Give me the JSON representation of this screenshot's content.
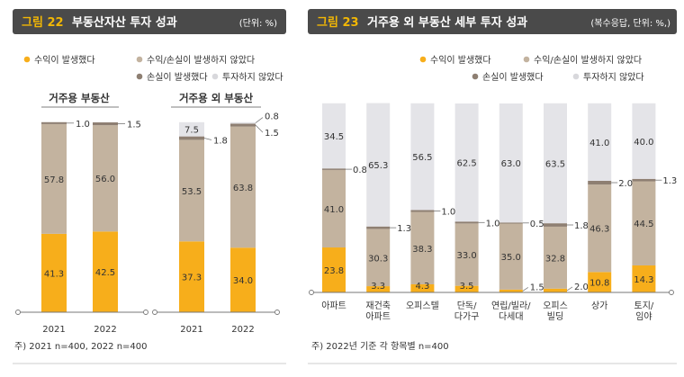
{
  "colors": {
    "header_bg": "#4a4a4a",
    "header_accent": "#f2b705",
    "header_text": "#ffffff",
    "profit": "#f7ae1b",
    "mixed": "#c3b39f",
    "loss": "#8e7f72",
    "no_invest": "#e4e4e8",
    "axis": "#777777"
  },
  "legend_items": [
    {
      "key": "profit",
      "label": "수익이 발생했다"
    },
    {
      "key": "mixed",
      "label": "수익/손실이 발생하지 않았다"
    },
    {
      "key": "loss",
      "label": "손실이 발생했다"
    },
    {
      "key": "no_invest",
      "label": "투자하지 않았다"
    }
  ],
  "chart_data": [
    {
      "type": "bar",
      "stacked": true,
      "figure_label": "그림 22",
      "title": "부동산자산 투자 성과",
      "unit": "(단위: %)",
      "groups": [
        {
          "title": "거주용 부동산",
          "categories": [
            "2021",
            "2022"
          ]
        },
        {
          "title": "거주용 외 부동산",
          "categories": [
            "2021",
            "2022"
          ]
        }
      ],
      "series": [
        {
          "name": "수익이 발생했다",
          "key": "profit",
          "values": [
            41.3,
            42.5,
            37.3,
            34.0
          ],
          "labels": [
            "41.3",
            "42.5",
            "37.3",
            "34.0"
          ]
        },
        {
          "name": "수익/손실이 발생하지 않았다",
          "key": "mixed",
          "values": [
            57.8,
            56.0,
            53.5,
            63.8
          ],
          "labels": [
            "57.8",
            "56.0",
            "53.5",
            "63.8"
          ]
        },
        {
          "name": "손실이 발생했다",
          "key": "loss",
          "values": [
            1.0,
            1.5,
            1.8,
            1.5
          ],
          "labels": [
            "1.0",
            "1.5",
            "1.8",
            "1.5"
          ]
        },
        {
          "name": "투자하지 않았다",
          "key": "no_invest",
          "values": [
            0,
            0,
            7.5,
            0.8
          ],
          "labels": [
            "",
            "",
            "7.5",
            "0.8"
          ]
        }
      ],
      "ylim": [
        0,
        100
      ],
      "note": "주) 2021 n=400, 2022 n=400"
    },
    {
      "type": "bar",
      "stacked": true,
      "figure_label": "그림 23",
      "title": "거주용 외 부동산 세부 투자 성과",
      "unit": "(복수응답, 단위: %,)",
      "categories": [
        "아파트",
        "재건축\n아파트",
        "오피스텔",
        "단독/\n다가구",
        "연립/빌라/\n다세대",
        "오피스\n빌딩",
        "상가",
        "토지/\n임야"
      ],
      "series": [
        {
          "name": "수익이 발생했다",
          "key": "profit",
          "values": [
            23.8,
            3.3,
            4.3,
            3.5,
            1.5,
            2.0,
            10.8,
            14.3
          ],
          "labels": [
            "23.8",
            "3.3",
            "4.3",
            "3.5",
            "1.5",
            "2.0",
            "10.8",
            "14.3"
          ]
        },
        {
          "name": "수익/손실이 발생하지 않았다",
          "key": "mixed",
          "values": [
            41.0,
            30.3,
            38.3,
            33.0,
            35.0,
            32.8,
            46.3,
            44.5
          ],
          "labels": [
            "41.0",
            "30.3",
            "38.3",
            "33.0",
            "35.0",
            "32.8",
            "46.3",
            "44.5"
          ]
        },
        {
          "name": "손실이 발생했다",
          "key": "loss",
          "values": [
            0.8,
            1.3,
            1.0,
            1.0,
            0.5,
            1.8,
            2.0,
            1.3
          ],
          "labels": [
            "0.8",
            "1.3",
            "1.0",
            "1.0",
            "0.5",
            "1.8",
            "2.0",
            "1.3"
          ]
        },
        {
          "name": "투자하지 않았다",
          "key": "no_invest",
          "values": [
            34.5,
            65.3,
            56.5,
            62.5,
            63.0,
            63.5,
            41.0,
            40.0
          ],
          "labels": [
            "34.5",
            "65.3",
            "56.5",
            "62.5",
            "63.0",
            "63.5",
            "41.0",
            "40.0"
          ]
        }
      ],
      "ylim": [
        0,
        100
      ],
      "note": "주) 2022년 기준 각 항목별 n=400"
    }
  ]
}
